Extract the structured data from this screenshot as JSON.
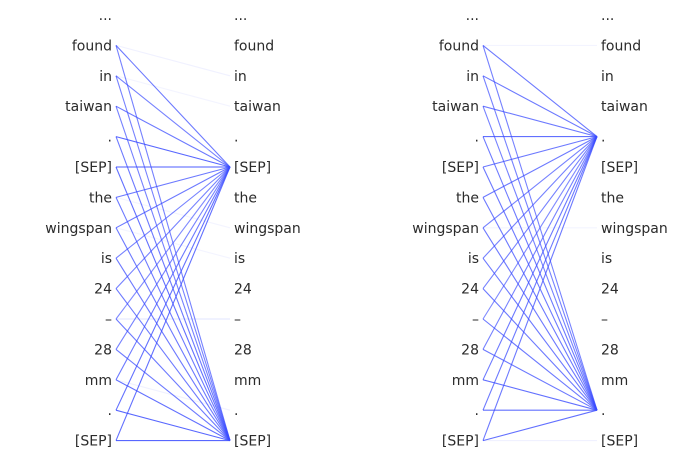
{
  "tokens": [
    "...",
    "found",
    "in",
    "taiwan",
    ".",
    "[SEP]",
    "the",
    "wingspan",
    "is",
    "24",
    "–",
    "28",
    "mm",
    ".",
    "[SEP]"
  ],
  "line_color": "#3b4cff",
  "panels": [
    {
      "edges": [
        {
          "from": 1,
          "to": 5,
          "w": 0.75
        },
        {
          "from": 1,
          "to": 14,
          "w": 0.7
        },
        {
          "from": 1,
          "to": 2,
          "w": 0.08
        },
        {
          "from": 2,
          "to": 5,
          "w": 0.7
        },
        {
          "from": 2,
          "to": 14,
          "w": 0.7
        },
        {
          "from": 2,
          "to": 3,
          "w": 0.06
        },
        {
          "from": 3,
          "to": 5,
          "w": 0.75
        },
        {
          "from": 3,
          "to": 14,
          "w": 0.7
        },
        {
          "from": 4,
          "to": 5,
          "w": 0.85
        },
        {
          "from": 4,
          "to": 14,
          "w": 0.75
        },
        {
          "from": 5,
          "to": 5,
          "w": 0.9
        },
        {
          "from": 5,
          "to": 14,
          "w": 0.8
        },
        {
          "from": 6,
          "to": 5,
          "w": 0.75
        },
        {
          "from": 6,
          "to": 14,
          "w": 0.75
        },
        {
          "from": 6,
          "to": 7,
          "w": 0.06
        },
        {
          "from": 7,
          "to": 5,
          "w": 0.75
        },
        {
          "from": 7,
          "to": 14,
          "w": 0.75
        },
        {
          "from": 7,
          "to": 8,
          "w": 0.06
        },
        {
          "from": 8,
          "to": 5,
          "w": 0.7
        },
        {
          "from": 8,
          "to": 14,
          "w": 0.75
        },
        {
          "from": 9,
          "to": 5,
          "w": 0.7
        },
        {
          "from": 9,
          "to": 14,
          "w": 0.75
        },
        {
          "from": 10,
          "to": 5,
          "w": 0.65
        },
        {
          "from": 10,
          "to": 14,
          "w": 0.75
        },
        {
          "from": 10,
          "to": 10,
          "w": 0.15
        },
        {
          "from": 11,
          "to": 5,
          "w": 0.7
        },
        {
          "from": 11,
          "to": 14,
          "w": 0.75
        },
        {
          "from": 12,
          "to": 5,
          "w": 0.75
        },
        {
          "from": 12,
          "to": 14,
          "w": 0.8
        },
        {
          "from": 12,
          "to": 13,
          "w": 0.08
        },
        {
          "from": 13,
          "to": 5,
          "w": 0.8
        },
        {
          "from": 13,
          "to": 14,
          "w": 0.85
        },
        {
          "from": 14,
          "to": 5,
          "w": 0.8
        },
        {
          "from": 14,
          "to": 14,
          "w": 0.85
        }
      ]
    },
    {
      "edges": [
        {
          "from": 1,
          "to": 4,
          "w": 0.75
        },
        {
          "from": 1,
          "to": 13,
          "w": 0.7
        },
        {
          "from": 1,
          "to": 1,
          "w": 0.06
        },
        {
          "from": 2,
          "to": 4,
          "w": 0.75
        },
        {
          "from": 2,
          "to": 13,
          "w": 0.7
        },
        {
          "from": 3,
          "to": 4,
          "w": 0.75
        },
        {
          "from": 3,
          "to": 13,
          "w": 0.7
        },
        {
          "from": 4,
          "to": 4,
          "w": 0.8
        },
        {
          "from": 4,
          "to": 13,
          "w": 0.75
        },
        {
          "from": 5,
          "to": 4,
          "w": 0.75
        },
        {
          "from": 5,
          "to": 13,
          "w": 0.75
        },
        {
          "from": 6,
          "to": 4,
          "w": 0.75
        },
        {
          "from": 6,
          "to": 13,
          "w": 0.75
        },
        {
          "from": 7,
          "to": 4,
          "w": 0.7
        },
        {
          "from": 7,
          "to": 13,
          "w": 0.75
        },
        {
          "from": 7,
          "to": 7,
          "w": 0.06
        },
        {
          "from": 8,
          "to": 4,
          "w": 0.7
        },
        {
          "from": 8,
          "to": 13,
          "w": 0.75
        },
        {
          "from": 9,
          "to": 4,
          "w": 0.7
        },
        {
          "from": 9,
          "to": 13,
          "w": 0.75
        },
        {
          "from": 10,
          "to": 4,
          "w": 0.65
        },
        {
          "from": 10,
          "to": 13,
          "w": 0.75
        },
        {
          "from": 11,
          "to": 4,
          "w": 0.7
        },
        {
          "from": 11,
          "to": 13,
          "w": 0.75
        },
        {
          "from": 12,
          "to": 4,
          "w": 0.75
        },
        {
          "from": 12,
          "to": 13,
          "w": 0.8
        },
        {
          "from": 13,
          "to": 4,
          "w": 0.75
        },
        {
          "from": 13,
          "to": 13,
          "w": 0.8
        },
        {
          "from": 14,
          "to": 4,
          "w": 0.75
        },
        {
          "from": 14,
          "to": 13,
          "w": 0.8
        },
        {
          "from": 14,
          "to": 14,
          "w": 0.08
        }
      ]
    }
  ]
}
